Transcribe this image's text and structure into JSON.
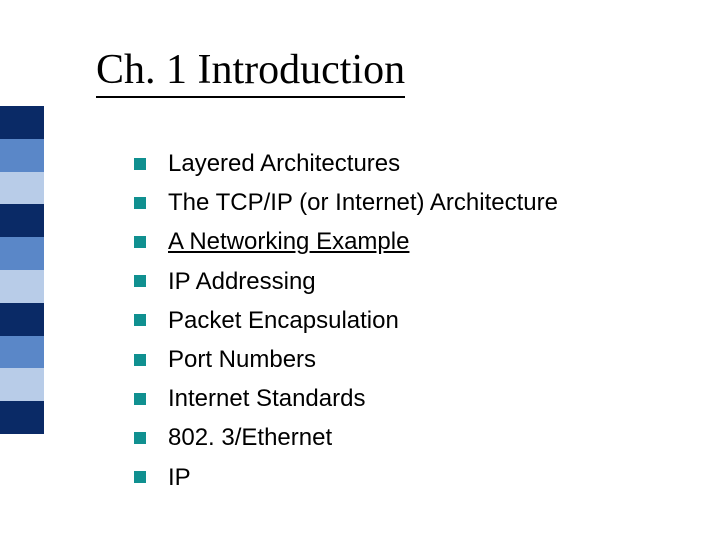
{
  "slide": {
    "title": "Ch. 1 Introduction",
    "title_font": "Times New Roman",
    "title_fontsize": 42,
    "title_color": "#000000",
    "body_fontsize": 24,
    "body_color": "#000000",
    "bullet_color": "#109090",
    "items": [
      {
        "text": "Layered Architectures",
        "underline": false
      },
      {
        "text": "The TCP/IP (or Internet) Architecture",
        "underline": false
      },
      {
        "text": "A Networking Example",
        "underline": true
      },
      {
        "text": "IP Addressing",
        "underline": false
      },
      {
        "text": "Packet Encapsulation",
        "underline": false
      },
      {
        "text": "Port Numbers",
        "underline": false
      },
      {
        "text": "Internet Standards",
        "underline": false
      },
      {
        "text": "802. 3/Ethernet",
        "underline": false
      },
      {
        "text": "IP",
        "underline": false
      }
    ]
  },
  "sidebar": {
    "colors": [
      "#0a2a66",
      "#5a87c8",
      "#b8cce8",
      "#0a2a66",
      "#5a87c8",
      "#b8cce8",
      "#0a2a66",
      "#5a87c8",
      "#b8cce8",
      "#0a2a66"
    ]
  },
  "background_color": "#ffffff"
}
